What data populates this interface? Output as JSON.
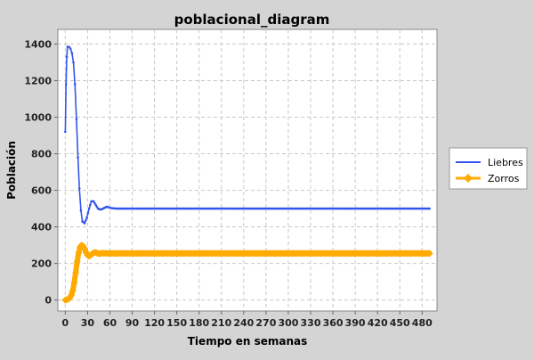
{
  "chart_data": {
    "type": "line",
    "title": "poblacional_diagram",
    "xlabel": "Tiempo en semanas",
    "ylabel": "Población",
    "xlim": [
      -10,
      500
    ],
    "ylim": [
      -60,
      1480
    ],
    "x_ticks": [
      0,
      30,
      60,
      90,
      120,
      150,
      180,
      210,
      240,
      270,
      300,
      330,
      360,
      390,
      420,
      450,
      480
    ],
    "y_ticks": [
      0,
      200,
      400,
      600,
      800,
      1000,
      1200,
      1400
    ],
    "grid": true,
    "legend_position": "right",
    "series": [
      {
        "name": "Liebres",
        "color": "#3355ee",
        "marker": "small-dot",
        "points": [
          [
            0,
            920
          ],
          [
            1,
            1180
          ],
          [
            2,
            1330
          ],
          [
            3,
            1385
          ],
          [
            5,
            1385
          ],
          [
            7,
            1375
          ],
          [
            9,
            1350
          ],
          [
            11,
            1300
          ],
          [
            13,
            1180
          ],
          [
            15,
            990
          ],
          [
            17,
            780
          ],
          [
            19,
            610
          ],
          [
            21,
            490
          ],
          [
            23,
            430
          ],
          [
            26,
            420
          ],
          [
            29,
            450
          ],
          [
            32,
            500
          ],
          [
            35,
            540
          ],
          [
            38,
            540
          ],
          [
            41,
            520
          ],
          [
            44,
            500
          ],
          [
            47,
            495
          ],
          [
            50,
            498
          ],
          [
            53,
            505
          ],
          [
            56,
            510
          ],
          [
            59,
            506
          ],
          [
            63,
            502
          ],
          [
            70,
            500
          ],
          [
            100,
            500
          ],
          [
            200,
            500
          ],
          [
            300,
            500
          ],
          [
            400,
            500
          ],
          [
            490,
            500
          ]
        ]
      },
      {
        "name": "Zorros",
        "color": "#ffaa00",
        "marker": "diamond",
        "points": [
          [
            0,
            0
          ],
          [
            2,
            2
          ],
          [
            4,
            5
          ],
          [
            6,
            12
          ],
          [
            8,
            25
          ],
          [
            10,
            50
          ],
          [
            12,
            95
          ],
          [
            14,
            150
          ],
          [
            16,
            210
          ],
          [
            18,
            260
          ],
          [
            20,
            290
          ],
          [
            22,
            300
          ],
          [
            24,
            295
          ],
          [
            26,
            280
          ],
          [
            28,
            260
          ],
          [
            30,
            245
          ],
          [
            32,
            240
          ],
          [
            34,
            245
          ],
          [
            36,
            252
          ],
          [
            38,
            258
          ],
          [
            40,
            260
          ],
          [
            42,
            258
          ],
          [
            44,
            255
          ],
          [
            46,
            254
          ],
          [
            48,
            255
          ],
          [
            50,
            256
          ],
          [
            60,
            255
          ],
          [
            100,
            255
          ],
          [
            200,
            255
          ],
          [
            300,
            255
          ],
          [
            400,
            255
          ],
          [
            490,
            255
          ]
        ]
      }
    ]
  }
}
